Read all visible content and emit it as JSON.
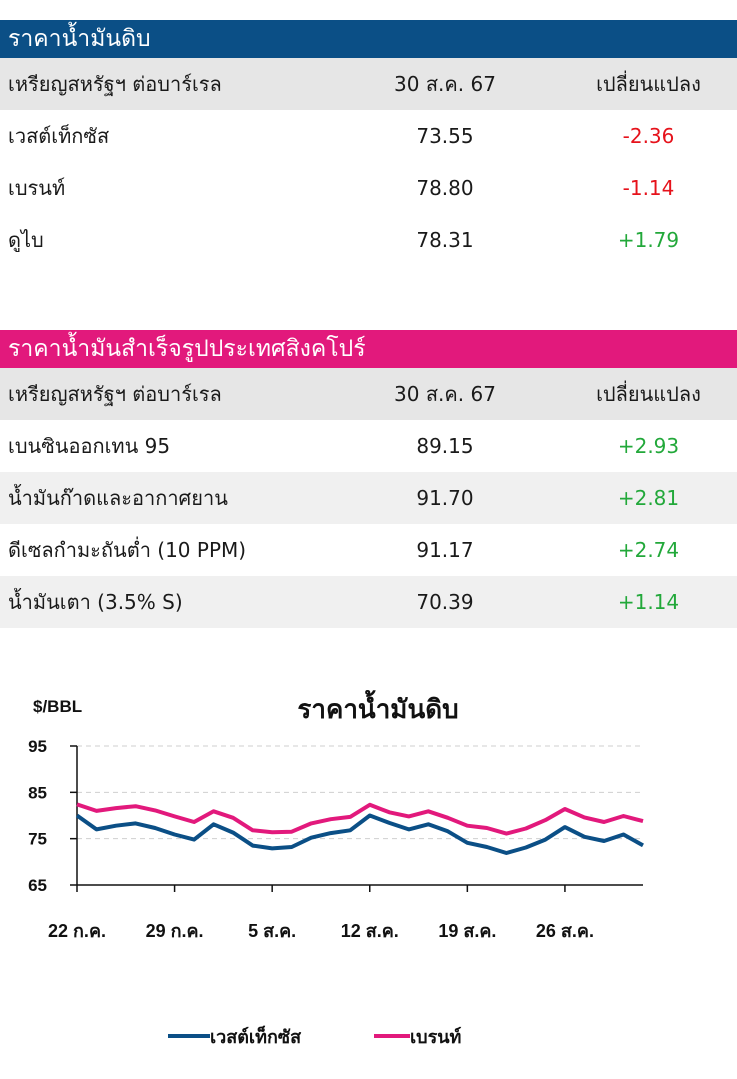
{
  "crude": {
    "title": "ราคาน้ำมันดิบ",
    "bar_color": "#0b4f86",
    "header": {
      "name": "เหรียญสหรัฐฯ ต่อบาร์เรล",
      "date": "30 ส.ค. 67",
      "change": "เปลี่ยนแปลง"
    },
    "rows": [
      {
        "name": "เวสต์เท็กซัส",
        "price": "73.55",
        "change": "-2.36"
      },
      {
        "name": "เบรนท์",
        "price": "78.80",
        "change": "-1.14"
      },
      {
        "name": "ดูไบ",
        "price": "78.31",
        "change": "+1.79"
      }
    ]
  },
  "products": {
    "title": "ราคาน้ำมันสำเร็จรูปประเทศสิงคโปร์",
    "bar_color": "#e2197c",
    "header": {
      "name": "เหรียญสหรัฐฯ ต่อบาร์เรล",
      "date": "30 ส.ค. 67",
      "change": "เปลี่ยนแปลง"
    },
    "rows": [
      {
        "name": "เบนซินออกเทน 95",
        "price": "89.15",
        "change": "+2.93"
      },
      {
        "name": "น้ำมันก๊าดและอากาศยาน",
        "price": "91.70",
        "change": "+2.81"
      },
      {
        "name": "ดีเซลกำมะถันต่ำ (10 PPM)",
        "price": "91.17",
        "change": "+2.74"
      },
      {
        "name": "น้ำมันเตา (3.5% S)",
        "price": "70.39",
        "change": "+1.14"
      }
    ]
  },
  "chart_data": {
    "type": "line",
    "title": "ราคาน้ำมันดิบ",
    "ylabel": "$/BBL",
    "ylim": [
      65,
      95
    ],
    "yticks": [
      65,
      75,
      85,
      95
    ],
    "grid": true,
    "legend_position": "bottom",
    "x": [
      "22 ก.ค.",
      "23 ก.ค.",
      "24 ก.ค.",
      "25 ก.ค.",
      "26 ก.ค.",
      "29 ก.ค.",
      "30 ก.ค.",
      "31 ก.ค.",
      "1 ส.ค.",
      "2 ส.ค.",
      "5 ส.ค.",
      "6 ส.ค.",
      "7 ส.ค.",
      "8 ส.ค.",
      "9 ส.ค.",
      "12 ส.ค.",
      "13 ส.ค.",
      "14 ส.ค.",
      "15 ส.ค.",
      "16 ส.ค.",
      "19 ส.ค.",
      "20 ส.ค.",
      "21 ส.ค.",
      "22 ส.ค.",
      "23 ส.ค.",
      "26 ส.ค.",
      "27 ส.ค.",
      "28 ส.ค.",
      "29 ส.ค.",
      "30 ส.ค."
    ],
    "xtick_labels": [
      "22 ก.ค.",
      "29 ก.ค.",
      "5 ส.ค.",
      "12 ส.ค.",
      "19 ส.ค.",
      "26 ส.ค."
    ],
    "series": [
      {
        "name": "เวสต์เท็กซัส",
        "color": "#0b4f86",
        "values": [
          80.0,
          77.0,
          77.8,
          78.3,
          77.3,
          75.9,
          74.8,
          78.1,
          76.3,
          73.5,
          72.9,
          73.2,
          75.2,
          76.2,
          76.8,
          80.0,
          78.4,
          77.0,
          78.1,
          76.6,
          74.1,
          73.2,
          71.9,
          73.1,
          74.8,
          77.5,
          75.4,
          74.5,
          75.9,
          73.55
        ]
      },
      {
        "name": "เบรนท์",
        "color": "#e2197c",
        "values": [
          82.4,
          81.0,
          81.6,
          82.0,
          81.1,
          79.8,
          78.6,
          80.9,
          79.5,
          76.8,
          76.4,
          76.5,
          78.3,
          79.2,
          79.7,
          82.3,
          80.7,
          79.8,
          80.9,
          79.5,
          77.8,
          77.3,
          76.1,
          77.2,
          79.0,
          81.4,
          79.6,
          78.6,
          79.9,
          78.8
        ]
      }
    ]
  }
}
